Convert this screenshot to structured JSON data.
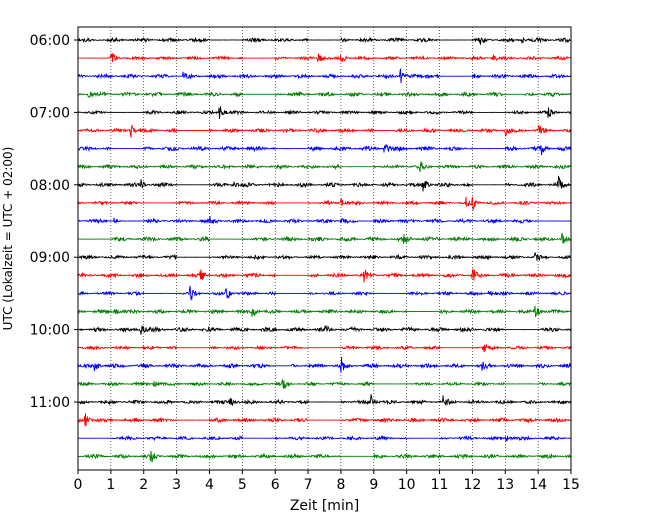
{
  "chart_data": {
    "type": "line",
    "title": "",
    "xlabel": "Zeit  [min]",
    "ylabel": "UTC (Lokalzeit = UTC + 02:00)",
    "xlim": [
      0,
      15
    ],
    "x_ticks": [
      "0",
      "1",
      "2",
      "3",
      "4",
      "5",
      "6",
      "7",
      "8",
      "9",
      "10",
      "11",
      "12",
      "13",
      "14",
      "15"
    ],
    "y_ticks": [
      {
        "label": "06:00",
        "trace": 0
      },
      {
        "label": "07:00",
        "trace": 4
      },
      {
        "label": "08:00",
        "trace": 8
      },
      {
        "label": "09:00",
        "trace": 12
      },
      {
        "label": "10:00",
        "trace": 16
      },
      {
        "label": "11:00",
        "trace": 20
      }
    ],
    "trace_interval_min": 15,
    "trace_colors": [
      "#000000",
      "#ff0000",
      "#0000ff",
      "#008000"
    ],
    "grid": "vertical dotted at each minute",
    "traces": [
      {
        "events": [
          [
            12.2,
            0.8
          ],
          [
            13.5,
            0.5
          ]
        ],
        "gaps": [
          [
            4.0,
            5.0
          ],
          [
            7.0,
            8.0
          ],
          [
            11.0,
            12.0
          ]
        ]
      },
      {
        "events": [
          [
            1.0,
            0.9
          ],
          [
            7.3,
            1.0
          ],
          [
            8.0,
            0.8
          ],
          [
            12.6,
            0.6
          ]
        ],
        "gaps": [
          [
            0.0,
            1.0
          ],
          [
            5.0,
            6.0
          ]
        ]
      },
      {
        "events": [
          [
            3.2,
            0.8
          ],
          [
            9.8,
            1.0
          ],
          [
            10.6,
            0.5
          ]
        ],
        "gaps": [
          [
            3.0,
            3.3
          ],
          [
            11.0,
            12.0
          ]
        ]
      },
      {
        "events": [
          [
            0.3,
            0.5
          ]
        ],
        "gaps": [
          [
            5.0,
            6.0
          ],
          [
            13.0,
            13.6
          ]
        ]
      },
      {
        "events": [
          [
            4.3,
            1.0
          ],
          [
            14.3,
            0.6
          ]
        ],
        "gaps": [
          [
            1.0,
            2.0
          ],
          [
            12.0,
            13.0
          ]
        ]
      },
      {
        "events": [
          [
            1.6,
            0.9
          ],
          [
            13.0,
            0.7
          ],
          [
            14.0,
            0.7
          ]
        ],
        "gaps": [
          [
            3.0,
            4.0
          ],
          [
            9.0,
            9.6
          ]
        ]
      },
      {
        "events": [
          [
            9.3,
            1.0
          ],
          [
            14.1,
            0.7
          ]
        ],
        "gaps": [
          [
            1.0,
            2.0
          ],
          [
            6.0,
            7.0
          ],
          [
            12.0,
            13.0
          ]
        ]
      },
      {
        "events": [
          [
            10.4,
            0.6
          ]
        ],
        "gaps": [
          [
            8.0,
            9.0
          ]
        ]
      },
      {
        "events": [
          [
            1.9,
            0.6
          ],
          [
            4.7,
            0.5
          ],
          [
            10.5,
            1.0
          ],
          [
            14.6,
            1.0
          ]
        ],
        "gaps": [
          [
            3.0,
            4.0
          ],
          [
            12.0,
            13.0
          ]
        ]
      },
      {
        "events": [
          [
            11.8,
            0.9
          ],
          [
            12.0,
            0.7
          ],
          [
            8.0,
            0.5
          ]
        ],
        "gaps": [
          [
            2.0,
            2.8
          ],
          [
            6.0,
            7.0
          ]
        ]
      },
      {
        "events": [
          [
            1.1,
            0.5
          ],
          [
            4.0,
            0.5
          ],
          [
            8.0,
            0.4
          ]
        ],
        "gaps": [
          [
            1.0,
            2.0
          ],
          [
            8.5,
            9.0
          ],
          [
            14.0,
            15.0
          ]
        ]
      },
      {
        "events": [
          [
            9.9,
            0.8
          ],
          [
            14.7,
            0.9
          ]
        ],
        "gaps": [
          [
            0.0,
            1.0
          ],
          [
            4.0,
            5.0
          ]
        ]
      },
      {
        "events": [
          [
            13.9,
            0.5
          ]
        ],
        "gaps": [
          [
            3.0,
            4.0
          ]
        ]
      },
      {
        "events": [
          [
            3.7,
            0.9
          ],
          [
            8.7,
            0.9
          ],
          [
            12.0,
            1.0
          ]
        ],
        "gaps": [
          [
            6.0,
            7.0
          ]
        ]
      },
      {
        "events": [
          [
            3.4,
            0.9
          ],
          [
            4.5,
            1.0
          ],
          [
            12.5,
            0.6
          ]
        ],
        "gaps": [
          [
            2.0,
            3.0
          ],
          [
            6.0,
            7.0
          ],
          [
            9.0,
            10.0
          ]
        ]
      },
      {
        "events": [
          [
            1.1,
            0.6
          ],
          [
            5.3,
            0.8
          ],
          [
            13.9,
            1.0
          ]
        ],
        "gaps": [
          [
            10.0,
            11.0
          ]
        ]
      },
      {
        "events": [
          [
            1.9,
            0.9
          ],
          [
            7.5,
            0.5
          ]
        ],
        "gaps": [
          [
            13.0,
            14.0
          ]
        ]
      },
      {
        "events": [
          [
            12.3,
            1.0
          ]
        ],
        "gaps": [
          [
            3.0,
            4.0
          ],
          [
            7.0,
            8.0
          ],
          [
            11.0,
            12.0
          ]
        ]
      },
      {
        "events": [
          [
            0.5,
            0.8
          ],
          [
            8.0,
            1.0
          ],
          [
            12.3,
            0.6
          ]
        ],
        "gaps": [
          [
            6.0,
            6.5
          ]
        ]
      },
      {
        "events": [
          [
            6.2,
            0.8
          ],
          [
            2.3,
            0.5
          ]
        ],
        "gaps": [
          [
            9.0,
            10.0
          ],
          [
            13.0,
            14.0
          ]
        ]
      },
      {
        "events": [
          [
            4.6,
            1.0
          ],
          [
            8.9,
            0.9
          ],
          [
            11.1,
            0.9
          ]
        ],
        "gaps": [
          [
            7.0,
            8.0
          ]
        ]
      },
      {
        "events": [
          [
            0.2,
            1.0
          ]
        ],
        "gaps": [
          [
            3.0,
            4.0
          ],
          [
            7.0,
            8.0
          ]
        ]
      },
      {
        "events": [
          [
            13.0,
            0.5
          ]
        ],
        "gaps": [
          [
            0.0,
            1.0
          ],
          [
            5.0,
            6.0
          ],
          [
            10.0,
            11.0
          ]
        ]
      },
      {
        "events": [
          [
            2.2,
            0.8
          ]
        ],
        "gaps": [
          [
            8.0,
            9.0
          ]
        ]
      }
    ]
  }
}
